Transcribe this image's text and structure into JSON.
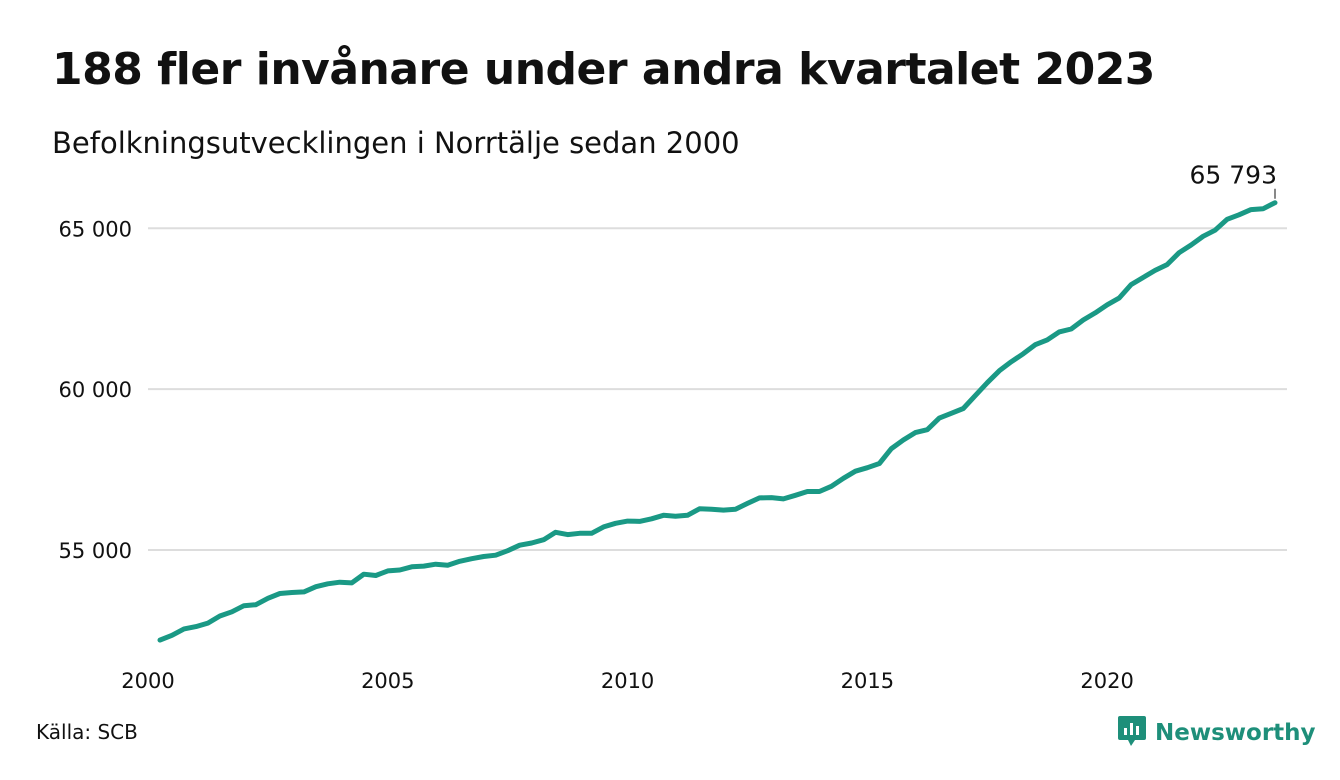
{
  "title": "188 fler invånare under andra kvartalet 2023",
  "subtitle": "Befolkningsutvecklingen i Norrtälje sedan 2000",
  "source": "Källa: SCB",
  "brand": "Newsworthy",
  "colors": {
    "line": "#1a9985",
    "grid": "#dddddd",
    "brand": "#1e8f7a",
    "text": "#111111"
  },
  "icons": {
    "logo": "newsworthy-logo-icon"
  },
  "chart_data": {
    "type": "line",
    "xlim": [
      2000,
      2023.75
    ],
    "ylim": [
      51800,
      66500
    ],
    "x_ticks": [
      2000,
      2005,
      2010,
      2015,
      2020
    ],
    "x_tick_labels": [
      "2000",
      "2005",
      "2010",
      "2015",
      "2020"
    ],
    "y_ticks": [
      55000,
      60000,
      65000
    ],
    "y_tick_labels": [
      "55 000",
      "60 000",
      "65 000"
    ],
    "grid": "horizontal",
    "end_label": "65 793",
    "series": [
      {
        "x": [
          2000.25,
          2000.5,
          2000.75,
          2001.0,
          2001.25,
          2001.5,
          2001.75,
          2002.0,
          2002.25,
          2002.5,
          2002.75,
          2003.0,
          2003.25,
          2003.5,
          2003.75,
          2004.0,
          2004.25,
          2004.5,
          2004.75,
          2005.0,
          2005.25,
          2005.5,
          2005.75,
          2006.0,
          2006.25,
          2006.5,
          2006.75,
          2007.0,
          2007.25,
          2007.5,
          2007.75,
          2008.0,
          2008.25,
          2008.5,
          2008.75,
          2009.0,
          2009.25,
          2009.5,
          2009.75,
          2010.0,
          2010.25,
          2010.5,
          2010.75,
          2011.0,
          2011.25,
          2011.5,
          2011.75,
          2012.0,
          2012.25,
          2012.5,
          2012.75,
          2013.0,
          2013.25,
          2013.5,
          2013.75,
          2014.0,
          2014.25,
          2014.5,
          2014.75,
          2015.0,
          2015.25,
          2015.5,
          2015.75,
          2016.0,
          2016.25,
          2016.5,
          2016.75,
          2017.0,
          2017.25,
          2017.5,
          2017.75,
          2018.0,
          2018.25,
          2018.5,
          2018.75,
          2019.0,
          2019.25,
          2019.5,
          2019.75,
          2020.0,
          2020.25,
          2020.5,
          2020.75,
          2021.0,
          2021.25,
          2021.5,
          2021.75,
          2022.0,
          2022.25,
          2022.5,
          2022.75,
          2023.0,
          2023.25,
          2023.5
        ],
        "values": [
          52200,
          52350,
          52550,
          52620,
          52730,
          52950,
          53080,
          53270,
          53300,
          53500,
          53650,
          53680,
          53700,
          53860,
          53950,
          54000,
          53980,
          54250,
          54210,
          54350,
          54380,
          54480,
          54500,
          54560,
          54530,
          54650,
          54730,
          54800,
          54840,
          54980,
          55150,
          55220,
          55320,
          55550,
          55480,
          55520,
          55520,
          55720,
          55830,
          55900,
          55890,
          55970,
          56080,
          56050,
          56080,
          56280,
          56270,
          56240,
          56270,
          56450,
          56620,
          56630,
          56590,
          56700,
          56820,
          56820,
          56980,
          57230,
          57450,
          57560,
          57690,
          58150,
          58420,
          58650,
          58740,
          59100,
          59250,
          59400,
          59800,
          60200,
          60570,
          60850,
          61100,
          61380,
          61530,
          61780,
          61870,
          62150,
          62370,
          62620,
          62830,
          63250,
          63470,
          63690,
          63870,
          64240,
          64480,
          64750,
          64940,
          65280,
          65420,
          65580,
          65605,
          65793
        ]
      }
    ]
  }
}
